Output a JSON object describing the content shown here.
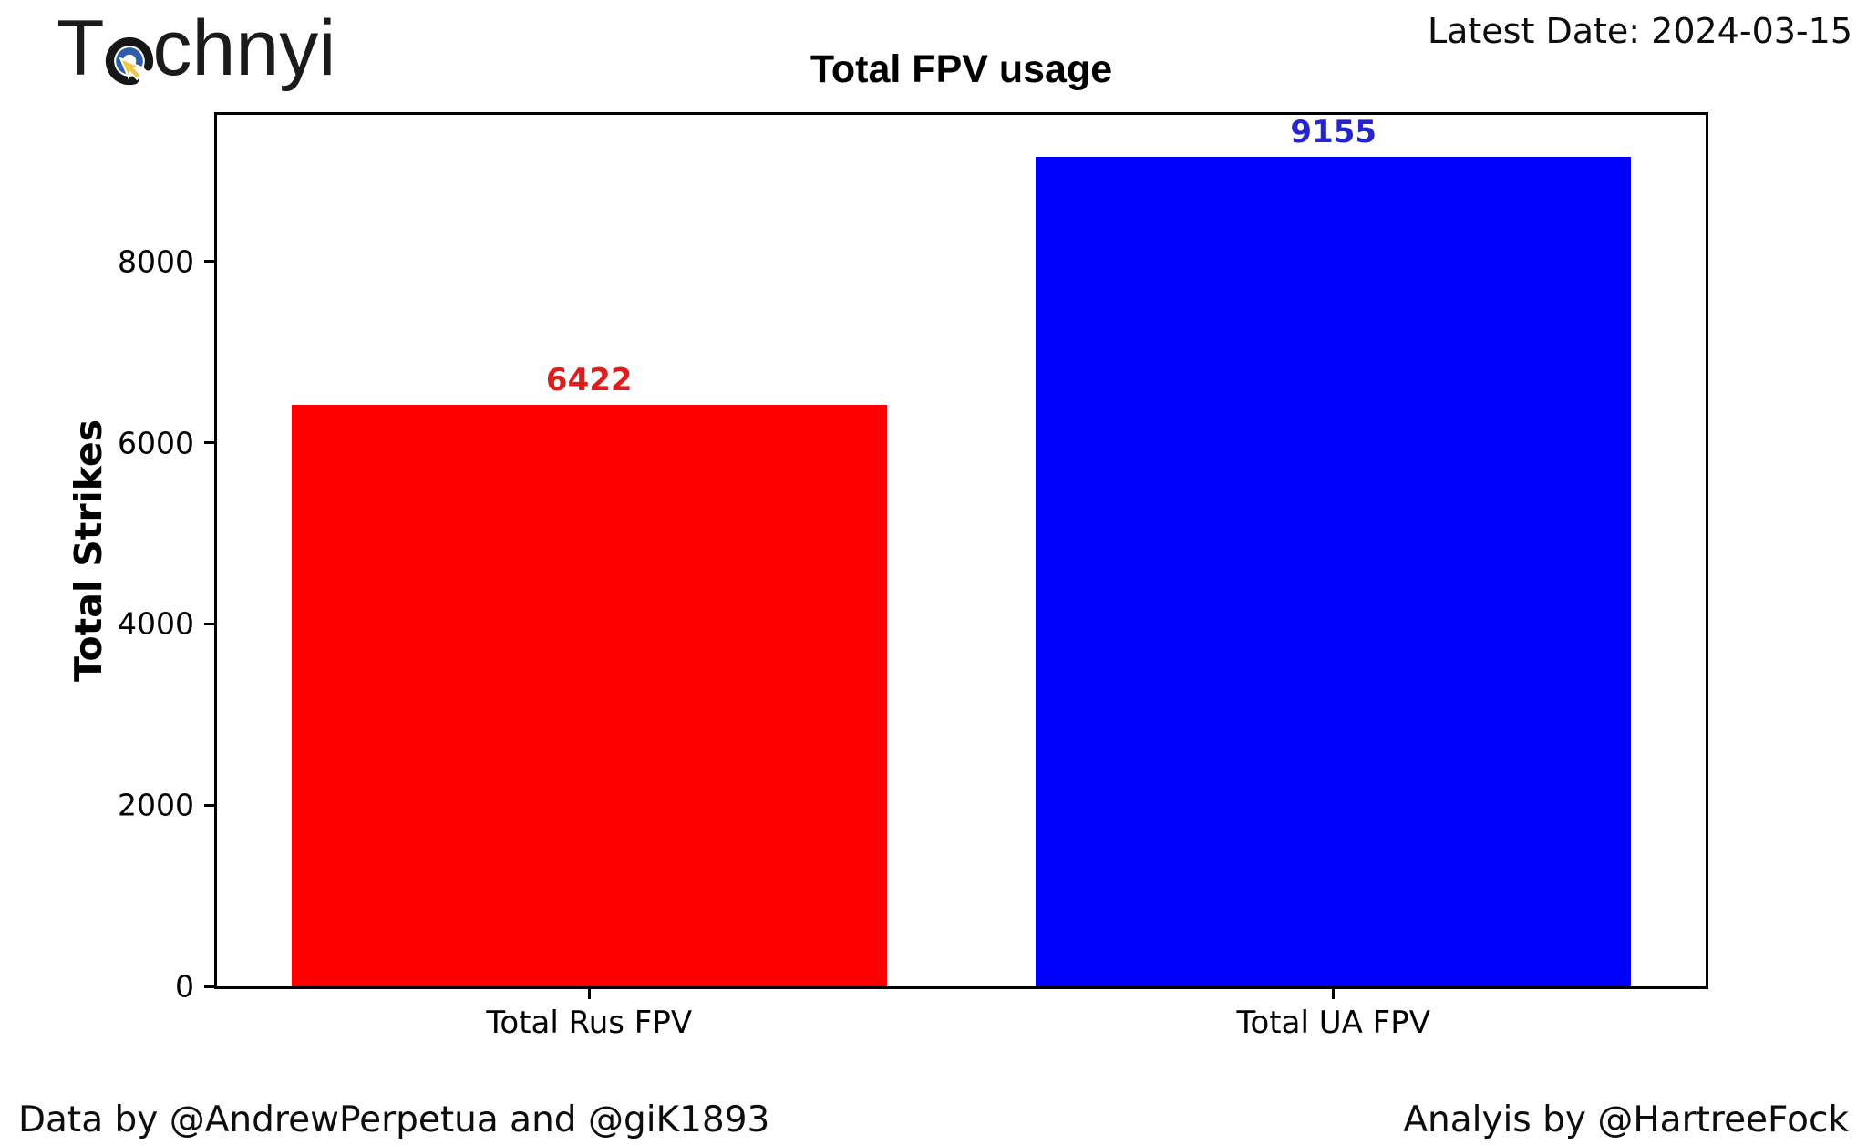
{
  "header": {
    "logo_text_prefix": "T",
    "logo_text_suffix": "chnyi",
    "latest_date": "Latest Date: 2024-03-15"
  },
  "footer": {
    "data_credit": "Data by @AndrewPerpetua and @giK1893",
    "analysis_credit": "Analyis by @HartreeFock"
  },
  "logo_colors": {
    "outer_ring": "#161616",
    "inner_ring": "#2d5fa8",
    "cursor": "#f2c63d"
  },
  "chart_data": {
    "type": "bar",
    "title": "Total FPV usage",
    "xlabel": "",
    "ylabel": "Total Strikes",
    "categories": [
      "Total Rus FPV",
      "Total UA FPV"
    ],
    "values": [
      6422,
      9155
    ],
    "bar_colors": [
      "#ff0000",
      "#0000ff"
    ],
    "value_label_colors": [
      "#dd1e1e",
      "#2525cd"
    ],
    "yticks": [
      0,
      2000,
      4000,
      6000,
      8000
    ],
    "ylim": [
      0,
      9620
    ],
    "bar_width_fraction": 0.8,
    "grid": false,
    "legend": null
  }
}
